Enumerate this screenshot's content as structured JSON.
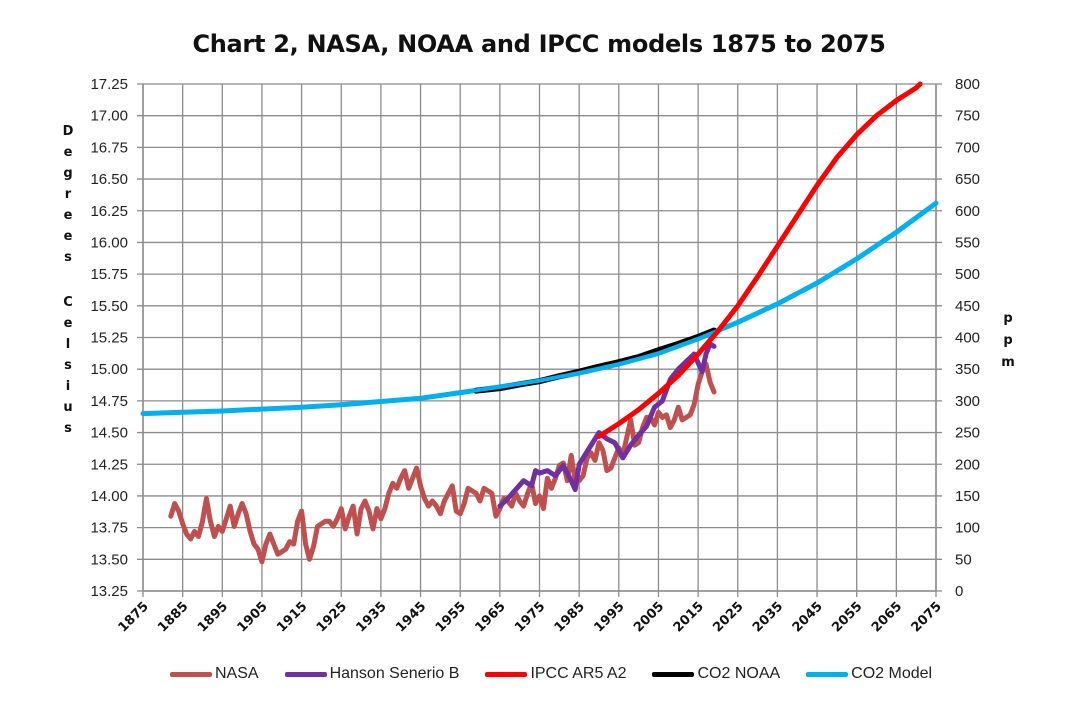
{
  "chart_data": {
    "type": "line",
    "title": "Chart 2, NASA, NOAA and IPCC models 1875 to 2075",
    "xlabel": "",
    "ylabel_left": "Degrees Celsius",
    "ylabel_right": "ppm",
    "xlim": [
      1875,
      2075
    ],
    "ylim_left": [
      13.25,
      17.25
    ],
    "ylim_right": [
      0,
      800
    ],
    "grid": true,
    "legend_position": "bottom",
    "x_ticks": [
      "1875",
      "1885",
      "1895",
      "1905",
      "1915",
      "1925",
      "1935",
      "1945",
      "1955",
      "1965",
      "1975",
      "1985",
      "1995",
      "2005",
      "2015",
      "2025",
      "2035",
      "2045",
      "2055",
      "2065",
      "2075"
    ],
    "y_ticks_left": [
      "17.25",
      "17.00",
      "16.75",
      "16.50",
      "16.25",
      "16.00",
      "15.75",
      "15.50",
      "15.25",
      "15.00",
      "14.75",
      "14.50",
      "14.25",
      "14.00",
      "13.75",
      "13.50",
      "13.25"
    ],
    "y_ticks_right": [
      "800",
      "750",
      "700",
      "650",
      "600",
      "550",
      "500",
      "450",
      "400",
      "350",
      "300",
      "250",
      "200",
      "150",
      "100",
      "50",
      "0"
    ],
    "series": [
      {
        "name": "NASA",
        "axis": "left",
        "color": "#c0504d",
        "x": [
          1882,
          1883,
          1884,
          1885,
          1886,
          1887,
          1888,
          1889,
          1890,
          1891,
          1892,
          1893,
          1894,
          1895,
          1896,
          1897,
          1898,
          1899,
          1900,
          1901,
          1902,
          1903,
          1904,
          1905,
          1906,
          1907,
          1908,
          1909,
          1910,
          1911,
          1912,
          1913,
          1914,
          1915,
          1916,
          1917,
          1918,
          1919,
          1920,
          1921,
          1922,
          1923,
          1924,
          1925,
          1926,
          1927,
          1928,
          1929,
          1930,
          1931,
          1932,
          1933,
          1934,
          1935,
          1936,
          1937,
          1938,
          1939,
          1940,
          1941,
          1942,
          1943,
          1944,
          1945,
          1946,
          1947,
          1948,
          1949,
          1950,
          1951,
          1952,
          1953,
          1954,
          1955,
          1956,
          1957,
          1958,
          1959,
          1960,
          1961,
          1962,
          1963,
          1964,
          1965,
          1966,
          1967,
          1968,
          1969,
          1970,
          1971,
          1972,
          1973,
          1974,
          1975,
          1976,
          1977,
          1978,
          1979,
          1980,
          1981,
          1982,
          1983,
          1984,
          1985,
          1986,
          1987,
          1988,
          1989,
          1990,
          1991,
          1992,
          1993,
          1994,
          1995,
          1996,
          1997,
          1998,
          1999,
          2000,
          2001,
          2002,
          2003,
          2004,
          2005,
          2006,
          2007,
          2008,
          2009,
          2010,
          2011,
          2012,
          2013,
          2014,
          2015,
          2016,
          2017,
          2018,
          2019
        ],
        "values": [
          13.84,
          13.94,
          13.88,
          13.78,
          13.7,
          13.66,
          13.72,
          13.68,
          13.8,
          13.98,
          13.8,
          13.68,
          13.76,
          13.72,
          13.82,
          13.92,
          13.76,
          13.86,
          13.94,
          13.86,
          13.72,
          13.62,
          13.58,
          13.48,
          13.62,
          13.7,
          13.62,
          13.54,
          13.56,
          13.58,
          13.64,
          13.62,
          13.8,
          13.88,
          13.62,
          13.5,
          13.6,
          13.76,
          13.78,
          13.8,
          13.8,
          13.76,
          13.82,
          13.9,
          13.74,
          13.84,
          13.92,
          13.7,
          13.9,
          13.96,
          13.88,
          13.74,
          13.9,
          13.82,
          13.9,
          14.02,
          14.1,
          14.06,
          14.14,
          14.2,
          14.06,
          14.14,
          14.22,
          14.08,
          13.98,
          13.92,
          13.96,
          13.92,
          13.86,
          13.96,
          14.02,
          14.08,
          13.88,
          13.86,
          13.94,
          14.06,
          14.04,
          14.02,
          13.96,
          14.06,
          14.04,
          14.02,
          13.84,
          13.9,
          13.98,
          13.96,
          13.92,
          14.02,
          13.96,
          13.92,
          14.02,
          14.1,
          13.94,
          14.0,
          13.9,
          14.14,
          14.06,
          14.14,
          14.24,
          14.26,
          14.12,
          14.32,
          14.12,
          14.12,
          14.16,
          14.3,
          14.34,
          14.28,
          14.42,
          14.36,
          14.2,
          14.22,
          14.3,
          14.38,
          14.32,
          14.46,
          14.6,
          14.4,
          14.42,
          14.54,
          14.62,
          14.62,
          14.56,
          14.66,
          14.62,
          14.64,
          14.54,
          14.6,
          14.7,
          14.6,
          14.62,
          14.64,
          14.72,
          14.88,
          14.98,
          15.04,
          14.9,
          14.82
        ]
      },
      {
        "name": "Hanson Senerio B",
        "axis": "left",
        "color": "#7030a0",
        "x": [
          1965,
          1967,
          1969,
          1971,
          1973,
          1974,
          1975,
          1977,
          1979,
          1981,
          1983,
          1984,
          1985,
          1987,
          1989,
          1990,
          1992,
          1994,
          1996,
          1998,
          2000,
          2002,
          2004,
          2006,
          2008,
          2010,
          2012,
          2014,
          2016,
          2017,
          2018,
          2019
        ],
        "values": [
          13.92,
          13.98,
          14.05,
          14.12,
          14.08,
          14.2,
          14.18,
          14.2,
          14.16,
          14.24,
          14.12,
          14.05,
          14.25,
          14.35,
          14.45,
          14.5,
          14.45,
          14.42,
          14.3,
          14.4,
          14.48,
          14.55,
          14.7,
          14.75,
          14.92,
          15.0,
          15.06,
          15.12,
          14.98,
          15.12,
          15.2,
          15.18
        ]
      },
      {
        "name": "IPCC AR5 A2",
        "axis": "left",
        "color": "#ff0000",
        "x": [
          1990,
          1995,
          2000,
          2005,
          2010,
          2015,
          2020,
          2025,
          2030,
          2035,
          2040,
          2045,
          2050,
          2055,
          2060,
          2065,
          2070,
          2071
        ],
        "values": [
          14.47,
          14.57,
          14.68,
          14.81,
          14.95,
          15.12,
          15.3,
          15.5,
          15.73,
          15.97,
          16.21,
          16.45,
          16.67,
          16.85,
          17.0,
          17.12,
          17.22,
          17.25
        ]
      },
      {
        "name": "CO2 NOAA",
        "axis": "right",
        "color": "#000000",
        "x": [
          1959,
          1965,
          1970,
          1975,
          1980,
          1985,
          1990,
          1995,
          2000,
          2005,
          2010,
          2015,
          2019
        ],
        "values": [
          316,
          320,
          326,
          331,
          339,
          346,
          354,
          361,
          369,
          380,
          390,
          401,
          411
        ]
      },
      {
        "name": "CO2 Model",
        "axis": "right",
        "color": "#00b0f0",
        "x": [
          1875,
          1885,
          1895,
          1905,
          1915,
          1925,
          1935,
          1945,
          1955,
          1965,
          1975,
          1985,
          1995,
          2005,
          2015,
          2025,
          2035,
          2045,
          2055,
          2065,
          2075
        ],
        "values": [
          280,
          282,
          284,
          287,
          290,
          294,
          299,
          304,
          313,
          322,
          332,
          344,
          358,
          375,
          398,
          424,
          453,
          486,
          524,
          566,
          612
        ]
      }
    ]
  }
}
